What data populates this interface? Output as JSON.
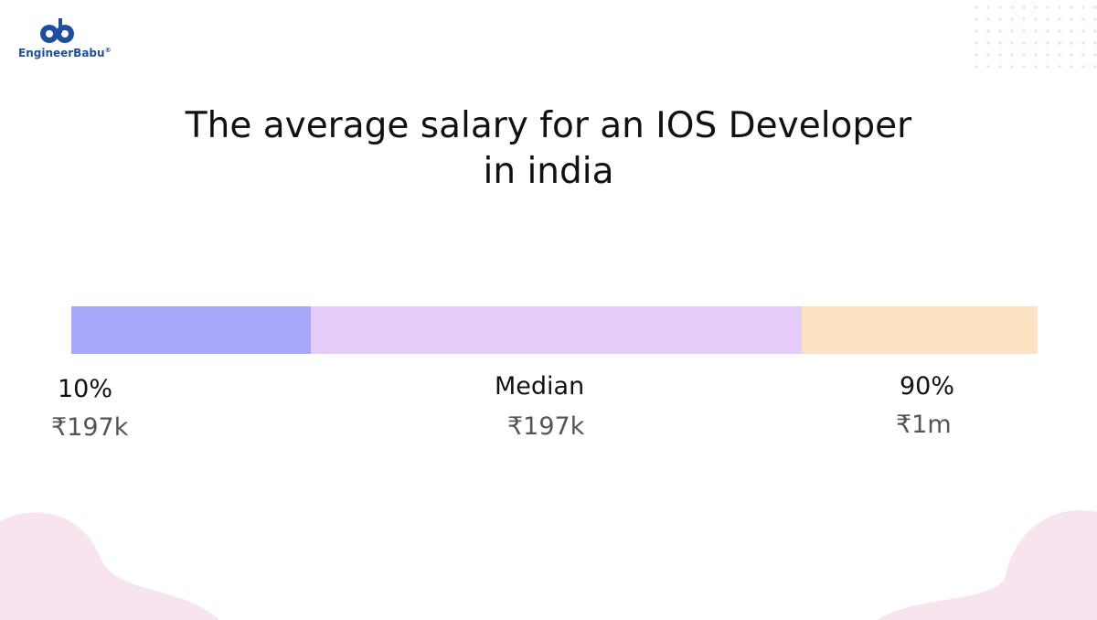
{
  "logo": {
    "name": "EngineerBabu",
    "mark": "®"
  },
  "title": {
    "lines": [
      "The average salary for an IOS Developer",
      "in india"
    ]
  },
  "salary": {
    "low": {
      "label": "10%",
      "amount": "₹197k"
    },
    "median": {
      "label": "Median",
      "amount": "₹197k"
    },
    "high": {
      "label": "90%",
      "amount": "₹1m"
    }
  }
}
